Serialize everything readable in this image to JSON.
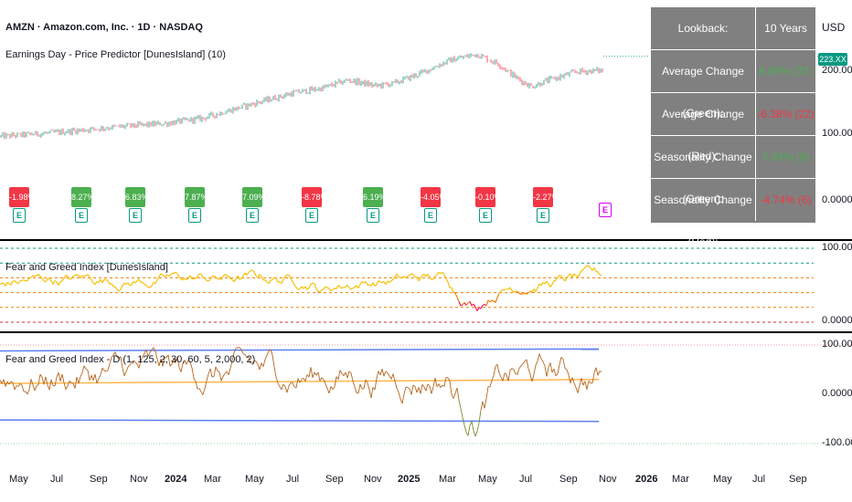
{
  "header": {
    "symbol": "AMZN · Amazon.com, Inc. · 1D · NASDAQ",
    "indicator": "Earnings Day - Price Predictor [DunesIsland] (10)"
  },
  "currency": "USD",
  "price_tag": "223.XX",
  "price_axis": [
    "200.00",
    "100.00",
    "0.0000"
  ],
  "fg1": {
    "label": "Fear and Greed Index [DunesIsland]",
    "axis": [
      "100.00",
      "0.0000"
    ]
  },
  "fg2": {
    "label": "Fear and Greed Index - D (1, 125, 2, 30, 60, 5, 2,000, 2)",
    "axis": [
      "100.00",
      "0.0000",
      "-100.00"
    ]
  },
  "stats_table": {
    "rows": [
      {
        "label": "Lookback:",
        "value": "10 Years",
        "value_color": "#ffffff"
      },
      {
        "label": "Average Change (Green):",
        "value": "6.86% (37)",
        "value_color": "#4caf50"
      },
      {
        "label": "Average Change (Red):",
        "value": "-6.38% (22)",
        "value_color": "#f23645"
      },
      {
        "label": "Seasonality Change (Green):",
        "value": "5.04% (9)",
        "value_color": "#4caf50"
      },
      {
        "label": "Seasonality Change (Red):",
        "value": "-4.74% (6)",
        "value_color": "#f23645"
      }
    ]
  },
  "earnings_badges": [
    {
      "text": "-1.98%",
      "color": "#f23645"
    },
    {
      "text": "8.27%",
      "color": "#4caf50"
    },
    {
      "text": "6.83%",
      "color": "#4caf50"
    },
    {
      "text": "7.87%",
      "color": "#4caf50"
    },
    {
      "text": "7.09%",
      "color": "#4caf50"
    },
    {
      "text": "-8.78%",
      "color": "#f23645"
    },
    {
      "text": "6.19%",
      "color": "#4caf50"
    },
    {
      "text": "-4.05%",
      "color": "#f23645"
    },
    {
      "text": "-0.10%",
      "color": "#f23645"
    },
    {
      "text": "-2.27%",
      "color": "#f23645"
    }
  ],
  "earnings_markers": [
    "E",
    "E",
    "E",
    "E",
    "E",
    "E",
    "E",
    "E",
    "E",
    "E",
    "E"
  ],
  "x_axis": [
    "May",
    "Jul",
    "Sep",
    "Nov",
    "2024",
    "Mar",
    "May",
    "Jul",
    "Sep",
    "Nov",
    "2025",
    "Mar",
    "May",
    "Jul",
    "Sep",
    "Nov",
    "2026",
    "Mar",
    "May",
    "Jul",
    "Sep"
  ],
  "colors": {
    "candle_up": "#089981",
    "candle_down": "#f23645",
    "fg_line": "#f5c000",
    "fg_low": "#e91e63",
    "fg_high": "#4caf50",
    "dash_green": "#089981",
    "dash_orange": "#f57c00",
    "dash_red": "#d32f2f",
    "band_blue": "#5b7ff0",
    "fg2_line": "#b5651d",
    "fg2_ma": "#ff9800"
  },
  "chart_data": {
    "type": "line",
    "seed": 7,
    "price": {
      "ylim": [
        -20,
        260
      ],
      "start": 95,
      "end": 222
    },
    "fg1": {
      "ylim": [
        0,
        100
      ],
      "levels": [
        100,
        80,
        60,
        40,
        20,
        0
      ]
    },
    "fg2": {
      "ylim": [
        -100,
        100
      ],
      "upper_band": 90,
      "lower_band": -60
    }
  }
}
